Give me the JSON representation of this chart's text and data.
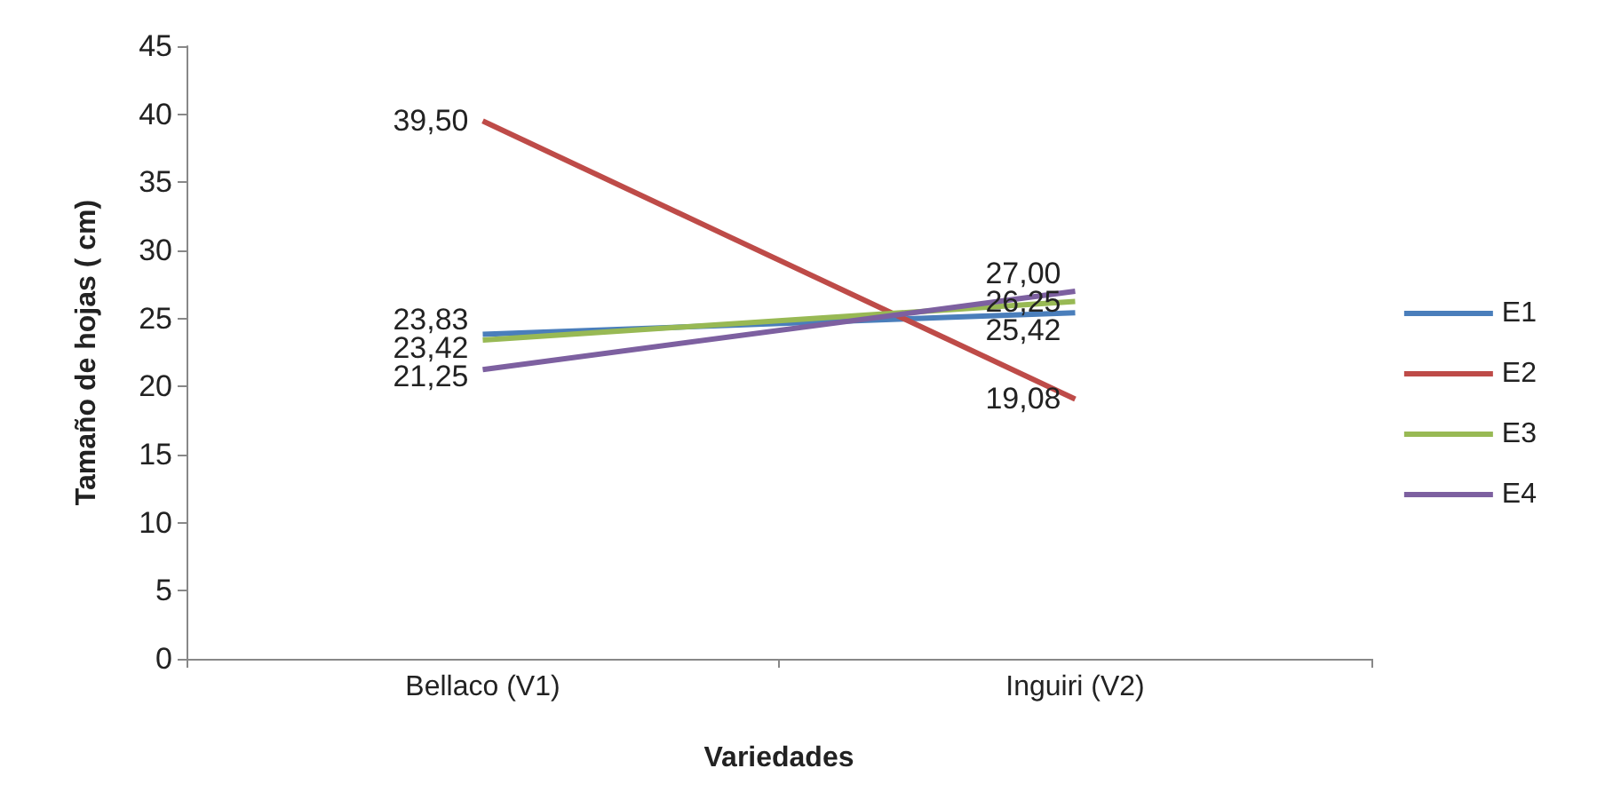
{
  "chart_data": {
    "type": "line",
    "xlabel": "Variedades",
    "ylabel": "Tamaño de hojas ( cm)",
    "categories": [
      "Bellaco (V1)",
      "Inguiri (V2)"
    ],
    "series": [
      {
        "name": "E1",
        "color": "#4a7ebb",
        "values": [
          23.83,
          25.42
        ],
        "value_labels": [
          "23,83",
          "25,42"
        ]
      },
      {
        "name": "E2",
        "color": "#be4b48",
        "values": [
          39.5,
          19.08
        ],
        "value_labels": [
          "39,50",
          "19,08"
        ]
      },
      {
        "name": "E3",
        "color": "#98b954",
        "values": [
          23.42,
          26.25
        ],
        "value_labels": [
          "23,42",
          "26,25"
        ]
      },
      {
        "name": "E4",
        "color": "#7d60a0",
        "values": [
          21.25,
          27.0
        ],
        "value_labels": [
          "21,25",
          "27,00"
        ]
      }
    ],
    "ylim": [
      0,
      45
    ],
    "yticks": [
      0,
      5,
      10,
      15,
      20,
      25,
      30,
      35,
      40,
      45
    ],
    "legend": "right",
    "marker": "none",
    "line_style": "solid",
    "grid": false
  }
}
